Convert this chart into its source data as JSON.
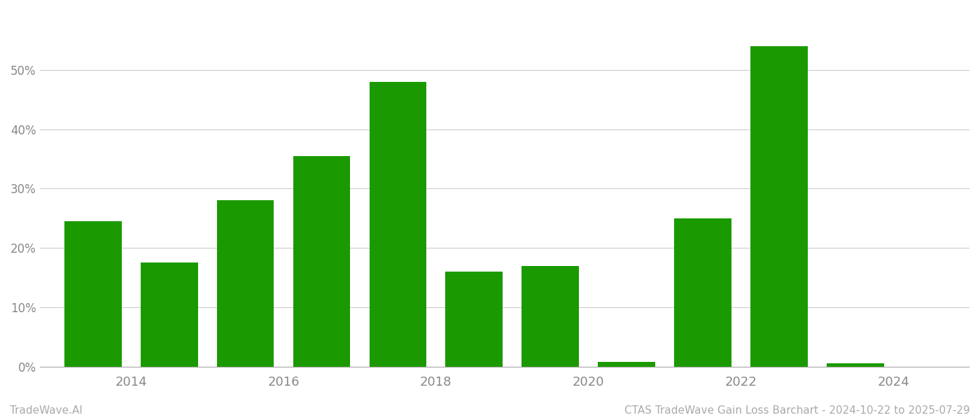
{
  "years": [
    2013,
    2014,
    2015,
    2016,
    2017,
    2018,
    2019,
    2020,
    2021,
    2022,
    2023
  ],
  "values": [
    24.5,
    17.5,
    28.0,
    35.5,
    48.0,
    16.0,
    17.0,
    0.8,
    25.0,
    54.0,
    0.5
  ],
  "bar_color": "#1a9a00",
  "background_color": "#ffffff",
  "grid_color": "#cccccc",
  "yticks": [
    0,
    10,
    20,
    30,
    40,
    50
  ],
  "ylim": [
    -1,
    60
  ],
  "xlabel_color": "#888888",
  "ylabel_color": "#888888",
  "footer_left": "TradeWave.AI",
  "footer_right": "CTAS TradeWave Gain Loss Barchart - 2024-10-22 to 2025-07-29",
  "footer_color": "#aaaaaa",
  "footer_fontsize": 11,
  "bar_width": 0.75,
  "xtick_labels": [
    "2014",
    "2016",
    "2018",
    "2020",
    "2022",
    "2024"
  ],
  "xtick_positions": [
    2013.5,
    2015.5,
    2017.5,
    2019.5,
    2021.5,
    2023.5
  ],
  "xlim": [
    2012.3,
    2024.5
  ]
}
